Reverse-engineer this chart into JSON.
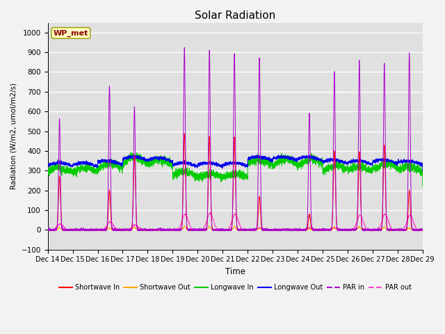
{
  "title": "Solar Radiation",
  "xlabel": "Time",
  "ylabel": "Radiation (W/m2, umol/m2/s)",
  "ylim": [
    -100,
    1050
  ],
  "yticks": [
    -100,
    0,
    100,
    200,
    300,
    400,
    500,
    600,
    700,
    800,
    900,
    1000
  ],
  "x_tick_labels": [
    "Dec 14",
    "Dec 15",
    "Dec 16",
    "Dec 17",
    "Dec 18",
    "Dec 19",
    "Dec 20",
    "Dec 21",
    "Dec 22",
    "Dec 23",
    "Dec 24",
    "Dec 25",
    "Dec 26",
    "Dec 27",
    "Dec 28",
    "Dec 29"
  ],
  "station_label": "WP_met",
  "bg_color": "#DCDCDC",
  "plot_bg_color": "#E0E0E0",
  "grid_color": "#FFFFFF",
  "n_days": 15,
  "points_per_day": 288,
  "shortwave_in_color": "#FF0000",
  "shortwave_out_color": "#FFA500",
  "longwave_in_color": "#00CC00",
  "longwave_out_color": "#0000EE",
  "par_in_color": "#AA00CC",
  "par_out_color": "#FF44CC",
  "par_in_peaks": [
    560,
    0,
    730,
    620,
    0,
    920,
    905,
    895,
    870,
    0,
    590,
    800,
    860,
    845,
    895
  ],
  "sw_in_peaks": [
    270,
    0,
    200,
    370,
    0,
    490,
    470,
    470,
    165,
    0,
    80,
    400,
    395,
    430,
    200
  ],
  "par_out_peaks": [
    30,
    0,
    40,
    25,
    0,
    80,
    85,
    80,
    10,
    0,
    10,
    10,
    75,
    80,
    75
  ],
  "lw_in_means": [
    290,
    290,
    310,
    340,
    330,
    270,
    260,
    260,
    330,
    330,
    330,
    300,
    295,
    310,
    295
  ],
  "lw_out_means": [
    325,
    325,
    335,
    355,
    350,
    325,
    325,
    325,
    355,
    355,
    355,
    340,
    335,
    340,
    335
  ],
  "figsize": [
    6.4,
    4.8
  ],
  "dpi": 100
}
